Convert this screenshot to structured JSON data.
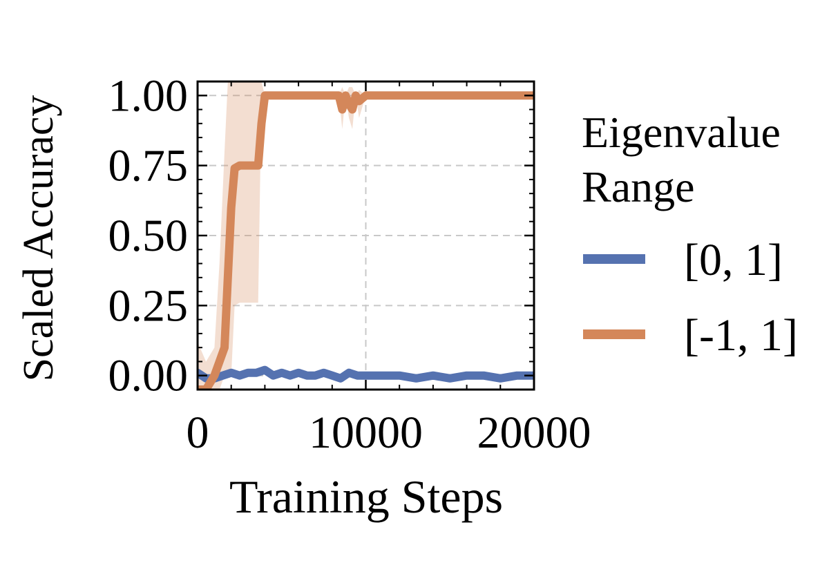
{
  "chart_data": {
    "type": "line",
    "title": "",
    "xlabel": "Training Steps",
    "ylabel": "Scaled Accuracy",
    "xlim": [
      0,
      20000
    ],
    "ylim": [
      -0.05,
      1.05
    ],
    "x_ticks": [
      0,
      10000,
      20000
    ],
    "x_tick_labels": [
      "0",
      "10000",
      "20000"
    ],
    "y_ticks": [
      0.0,
      0.25,
      0.5,
      0.75,
      1.0
    ],
    "y_tick_labels": [
      "0.00",
      "0.25",
      "0.50",
      "0.75",
      "1.00"
    ],
    "grid": true,
    "legend": {
      "title": "Eigenvalue Range",
      "title_lines": [
        "Eigenvalue",
        "Range"
      ],
      "placement": "outside-right",
      "entries": [
        "[0, 1]",
        "[-1, 1]"
      ]
    },
    "series": [
      {
        "name": "[0, 1]",
        "color": "#5572B0",
        "x": [
          0,
          500,
          1000,
          1500,
          2000,
          2500,
          3000,
          3500,
          4000,
          4500,
          5000,
          5500,
          6000,
          6500,
          7000,
          7500,
          8000,
          8500,
          9000,
          9500,
          10000,
          11000,
          12000,
          13000,
          14000,
          15000,
          16000,
          17000,
          18000,
          19000,
          20000
        ],
        "y": [
          0.01,
          -0.01,
          -0.01,
          0.0,
          0.01,
          0.0,
          0.01,
          0.01,
          0.02,
          0.0,
          0.01,
          0.0,
          0.01,
          0.0,
          0.0,
          0.01,
          0.0,
          -0.01,
          0.01,
          0.0,
          0.0,
          0.0,
          0.0,
          -0.01,
          0.0,
          -0.01,
          0.0,
          0.0,
          -0.01,
          0.0,
          0.0
        ]
      },
      {
        "name": "[-1, 1]",
        "color": "#D4875A",
        "x": [
          0,
          500,
          1000,
          1300,
          1600,
          1800,
          2000,
          2200,
          2500,
          2800,
          3100,
          3400,
          3600,
          3800,
          4000,
          5000,
          6000,
          7000,
          8000,
          8400,
          8600,
          8800,
          9000,
          9200,
          9400,
          9600,
          10000,
          11000,
          12000,
          13000,
          14000,
          15000,
          16000,
          17000,
          18000,
          19000,
          20000
        ],
        "y": [
          -0.05,
          -0.05,
          0.0,
          0.05,
          0.1,
          0.35,
          0.6,
          0.74,
          0.75,
          0.75,
          0.75,
          0.75,
          0.75,
          0.9,
          1.0,
          1.0,
          1.0,
          1.0,
          1.0,
          1.0,
          0.95,
          1.0,
          0.97,
          0.95,
          1.0,
          0.98,
          1.0,
          1.0,
          1.0,
          1.0,
          1.0,
          1.0,
          1.0,
          1.0,
          1.0,
          1.0,
          1.0
        ],
        "band_lower": [
          -0.05,
          -0.05,
          -0.05,
          -0.05,
          0.0,
          0.0,
          0.0,
          0.25,
          0.26,
          0.26,
          0.26,
          0.26,
          0.26,
          1.0,
          1.0,
          1.0,
          1.0,
          1.0,
          1.0,
          1.0,
          0.88,
          1.0,
          0.92,
          0.88,
          1.0,
          0.92,
          1.0,
          1.0,
          1.0,
          1.0,
          1.0,
          1.0,
          1.0,
          1.0,
          1.0,
          1.0,
          1.0
        ],
        "band_upper": [
          0.12,
          0.05,
          0.1,
          0.4,
          0.8,
          1.05,
          1.05,
          1.05,
          1.05,
          1.05,
          1.05,
          1.05,
          1.05,
          1.05,
          1.0,
          1.0,
          1.0,
          1.0,
          1.0,
          1.0,
          1.03,
          1.0,
          1.03,
          1.03,
          1.0,
          1.02,
          1.0,
          1.0,
          1.0,
          1.0,
          1.0,
          1.0,
          1.0,
          1.0,
          1.0,
          1.0,
          1.0
        ]
      }
    ]
  }
}
